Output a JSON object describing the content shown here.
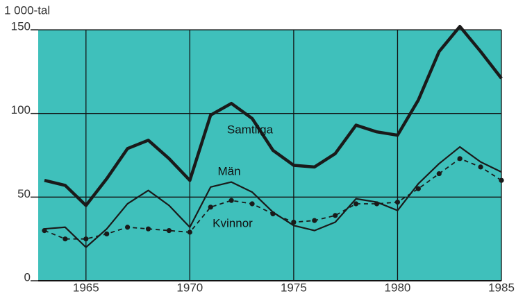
{
  "chart_data": {
    "type": "line",
    "y_unit_label": "1 000-tal",
    "x": [
      1963,
      1964,
      1965,
      1966,
      1967,
      1968,
      1969,
      1970,
      1971,
      1972,
      1973,
      1974,
      1975,
      1976,
      1977,
      1978,
      1979,
      1980,
      1981,
      1982,
      1983,
      1984,
      1985
    ],
    "series": [
      {
        "name": "Samtliga",
        "color": "#1a1a1a",
        "style": "thick",
        "values": [
          60,
          57,
          45,
          61,
          79,
          84,
          73,
          60,
          99,
          106,
          97,
          78,
          69,
          68,
          76,
          93,
          89,
          87,
          108,
          137,
          152,
          137,
          121
        ]
      },
      {
        "name": "Män",
        "color": "#1a1a1a",
        "style": "thin",
        "values": [
          31,
          32,
          20,
          31,
          46,
          54,
          45,
          32,
          56,
          59,
          53,
          41,
          33,
          30,
          35,
          49,
          47,
          42,
          58,
          70,
          80,
          71,
          65
        ]
      },
      {
        "name": "Kvinnor",
        "color": "#1a1a1a",
        "style": "dotted",
        "values": [
          30,
          25,
          25,
          28,
          32,
          31,
          30,
          29,
          44,
          48,
          46,
          40,
          35,
          36,
          39,
          46,
          46,
          47,
          55,
          64,
          73,
          68,
          60
        ]
      }
    ],
    "xlim": [
      1962.7,
      1985
    ],
    "xticks": [
      1965,
      1970,
      1975,
      1980,
      1985
    ],
    "ylim": [
      0,
      150
    ],
    "yticks": [
      0,
      50,
      100,
      150
    ],
    "grid": true,
    "background": "#3fc0bb"
  }
}
